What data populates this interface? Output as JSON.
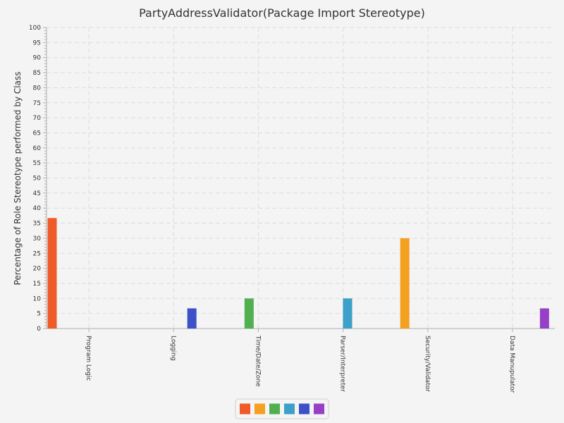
{
  "chart_data": {
    "type": "bar",
    "title": "PartyAddressValidator(Package Import Stereotype)",
    "xlabel": "",
    "ylabel": "Percentage of Role Stereotype performed by Class",
    "ylim": [
      0,
      100
    ],
    "ytick_step": 5,
    "grid": true,
    "legend_position": "bottom-center",
    "categories": [
      "Program Logic",
      "Logging",
      "Time/Date/Zone",
      "Parser/Interpreter",
      "Security/Validator",
      "Data Manupulator"
    ],
    "y_ticks": [
      "0",
      "5",
      "10",
      "15",
      "20",
      "25",
      "30",
      "35",
      "40",
      "45",
      "50",
      "55",
      "60",
      "65",
      "70",
      "75",
      "80",
      "85",
      "90",
      "95",
      "100"
    ],
    "series": [
      {
        "values": [
          36.7,
          0,
          0,
          0,
          0,
          0
        ],
        "color": "#f05a28"
      },
      {
        "values": [
          0,
          0,
          0,
          0,
          30,
          0
        ],
        "color": "#f5a020"
      },
      {
        "values": [
          0,
          0,
          10,
          0,
          0,
          0
        ],
        "color": "#50b050"
      },
      {
        "values": [
          0,
          0,
          0,
          10,
          0,
          0
        ],
        "color": "#3ca0c8"
      },
      {
        "values": [
          0,
          6.7,
          0,
          0,
          0,
          0
        ],
        "color": "#3c50c8"
      },
      {
        "values": [
          0,
          0,
          0,
          0,
          0,
          6.7
        ],
        "color": "#9640c8"
      }
    ]
  }
}
